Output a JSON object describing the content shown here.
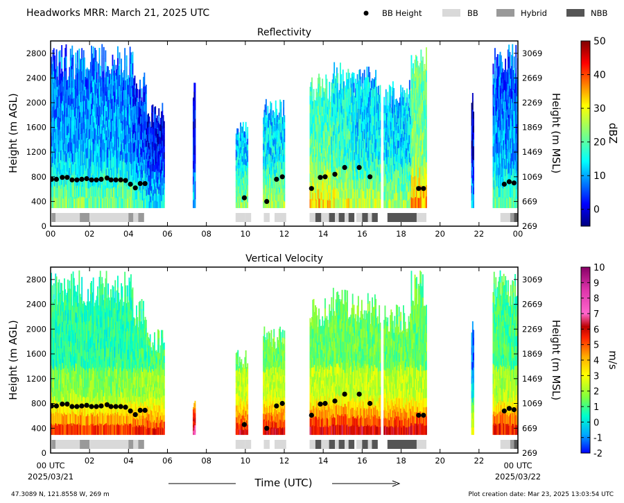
{
  "header": {
    "title": "Headworks MRR:  March 21, 2025 UTC",
    "legend": {
      "bb_height": "BB Height",
      "bb": "BB",
      "hybrid": "Hybrid",
      "nbb": "NBB"
    }
  },
  "colors": {
    "bb": "#d9d9d9",
    "hybrid": "#999999",
    "nbb": "#555555",
    "marker": "#000000"
  },
  "footer": {
    "location": "47.3089 N, 121.8558 W, 269 m",
    "created": "Plot creation date: Mar 23, 2025 13:03:54 UTC",
    "xlabel": "Time (UTC)",
    "start_label": "00 UTC",
    "start_date": "2025/03/21",
    "end_label": "00 UTC",
    "end_date": "2025/03/22"
  },
  "chart_data": [
    {
      "type": "heatmap",
      "title": "Reflectivity",
      "ylabel": "Height (m AGL)",
      "ylabel_right": "Height (m MSL)",
      "xlim": [
        0,
        24
      ],
      "ylim": [
        0,
        3000
      ],
      "x_ticks": [
        "00",
        "02",
        "04",
        "06",
        "08",
        "10",
        "12",
        "14",
        "16",
        "18",
        "20",
        "22",
        "00"
      ],
      "y_ticks": [
        0,
        400,
        800,
        1200,
        1600,
        2000,
        2400,
        2800
      ],
      "y_ticks_right": [
        269,
        669,
        1069,
        1469,
        1869,
        2269,
        2669,
        3069
      ],
      "colorbar": {
        "label": "dBZ",
        "min": -5,
        "max": 50,
        "ticks": [
          0,
          10,
          20,
          30,
          40,
          50
        ],
        "scheme": "jet"
      },
      "echo_segments": [
        {
          "t0": 0.0,
          "t1": 4.2,
          "top": 2950,
          "level": 0.32
        },
        {
          "t0": 4.2,
          "t1": 4.9,
          "top": 2500,
          "level": 0.25
        },
        {
          "t0": 4.9,
          "t1": 5.8,
          "top": 2000,
          "level": 0.18
        },
        {
          "t0": 7.3,
          "t1": 7.4,
          "top": 2400,
          "level": 0.15
        },
        {
          "t0": 9.5,
          "t1": 10.1,
          "top": 1700,
          "level": 0.35
        },
        {
          "t0": 10.9,
          "t1": 12.0,
          "top": 2100,
          "level": 0.38
        },
        {
          "t0": 13.3,
          "t1": 14.4,
          "top": 2500,
          "level": 0.5
        },
        {
          "t0": 14.4,
          "t1": 15.5,
          "top": 2700,
          "level": 0.45
        },
        {
          "t0": 15.5,
          "t1": 16.9,
          "top": 2600,
          "level": 0.4
        },
        {
          "t0": 17.1,
          "t1": 18.5,
          "top": 2400,
          "level": 0.38
        },
        {
          "t0": 18.5,
          "t1": 19.3,
          "top": 2950,
          "level": 0.55
        },
        {
          "t0": 21.6,
          "t1": 21.7,
          "top": 2300,
          "level": 0.15
        },
        {
          "t0": 22.7,
          "t1": 24.0,
          "top": 2950,
          "level": 0.3
        }
      ],
      "bb_height": [
        [
          0.05,
          760
        ],
        [
          0.3,
          760
        ],
        [
          0.6,
          790
        ],
        [
          0.85,
          790
        ],
        [
          1.1,
          750
        ],
        [
          1.35,
          750
        ],
        [
          1.6,
          760
        ],
        [
          1.85,
          770
        ],
        [
          2.1,
          750
        ],
        [
          2.35,
          750
        ],
        [
          2.6,
          760
        ],
        [
          2.9,
          780
        ],
        [
          3.1,
          750
        ],
        [
          3.35,
          750
        ],
        [
          3.6,
          750
        ],
        [
          3.85,
          740
        ],
        [
          4.1,
          680
        ],
        [
          4.35,
          620
        ],
        [
          4.6,
          690
        ],
        [
          4.85,
          690
        ],
        [
          9.95,
          460
        ],
        [
          11.1,
          400
        ],
        [
          11.6,
          760
        ],
        [
          11.9,
          800
        ],
        [
          13.4,
          610
        ],
        [
          13.85,
          790
        ],
        [
          14.1,
          800
        ],
        [
          14.6,
          840
        ],
        [
          15.1,
          950
        ],
        [
          15.85,
          950
        ],
        [
          16.4,
          800
        ],
        [
          18.9,
          610
        ],
        [
          19.15,
          610
        ],
        [
          23.3,
          680
        ],
        [
          23.55,
          720
        ],
        [
          23.8,
          700
        ]
      ],
      "bb_type_strip": [
        {
          "t0": 0.05,
          "t1": 0.25,
          "kind": "hybrid"
        },
        {
          "t0": 0.25,
          "t1": 1.5,
          "kind": "bb"
        },
        {
          "t0": 1.5,
          "t1": 2.0,
          "kind": "hybrid"
        },
        {
          "t0": 2.0,
          "t1": 4.0,
          "kind": "bb"
        },
        {
          "t0": 4.0,
          "t1": 4.25,
          "kind": "hybrid"
        },
        {
          "t0": 4.25,
          "t1": 4.5,
          "kind": "bb"
        },
        {
          "t0": 4.5,
          "t1": 4.8,
          "kind": "hybrid"
        },
        {
          "t0": 9.5,
          "t1": 10.0,
          "kind": "bb"
        },
        {
          "t0": 10.0,
          "t1": 10.3,
          "kind": "bb"
        },
        {
          "t0": 10.95,
          "t1": 11.25,
          "kind": "bb"
        },
        {
          "t0": 11.5,
          "t1": 12.1,
          "kind": "bb"
        },
        {
          "t0": 13.3,
          "t1": 13.6,
          "kind": "bb"
        },
        {
          "t0": 13.6,
          "t1": 13.9,
          "kind": "nbb"
        },
        {
          "t0": 13.9,
          "t1": 14.3,
          "kind": "bb"
        },
        {
          "t0": 14.3,
          "t1": 14.6,
          "kind": "nbb"
        },
        {
          "t0": 14.6,
          "t1": 14.8,
          "kind": "bb"
        },
        {
          "t0": 14.8,
          "t1": 15.1,
          "kind": "nbb"
        },
        {
          "t0": 15.1,
          "t1": 15.3,
          "kind": "bb"
        },
        {
          "t0": 15.3,
          "t1": 15.6,
          "kind": "nbb"
        },
        {
          "t0": 15.7,
          "t1": 16.0,
          "kind": "bb"
        },
        {
          "t0": 16.0,
          "t1": 16.3,
          "kind": "nbb"
        },
        {
          "t0": 16.3,
          "t1": 16.5,
          "kind": "bb"
        },
        {
          "t0": 16.5,
          "t1": 16.8,
          "kind": "nbb"
        },
        {
          "t0": 17.3,
          "t1": 18.8,
          "kind": "nbb"
        },
        {
          "t0": 18.8,
          "t1": 19.3,
          "kind": "bb"
        },
        {
          "t0": 23.1,
          "t1": 23.6,
          "kind": "bb"
        },
        {
          "t0": 23.6,
          "t1": 23.8,
          "kind": "hybrid"
        },
        {
          "t0": 23.8,
          "t1": 24.0,
          "kind": "nbb"
        }
      ]
    },
    {
      "type": "heatmap",
      "title": "Vertical Velocity",
      "ylabel": "Height (m AGL)",
      "ylabel_right": "Height (m MSL)",
      "xlim": [
        0,
        24
      ],
      "ylim": [
        0,
        3000
      ],
      "x_ticks": [
        "",
        "02",
        "04",
        "06",
        "08",
        "10",
        "12",
        "14",
        "16",
        "18",
        "20",
        "22",
        ""
      ],
      "y_ticks": [
        0,
        400,
        800,
        1200,
        1600,
        2000,
        2400,
        2800
      ],
      "y_ticks_right": [
        269,
        669,
        1069,
        1469,
        1869,
        2269,
        2669,
        3069
      ],
      "colorbar": {
        "label": "m/s",
        "min": -2,
        "max": 10,
        "ticks": [
          -2,
          -1,
          0,
          1,
          2,
          3,
          4,
          5,
          6,
          7,
          8,
          9,
          10
        ],
        "scheme": "jet-magenta"
      },
      "echo_segments": [
        {
          "t0": 0.0,
          "t1": 4.2,
          "top": 2950,
          "level": 0.45
        },
        {
          "t0": 4.2,
          "t1": 4.9,
          "top": 2500,
          "level": 0.48
        },
        {
          "t0": 4.9,
          "t1": 5.8,
          "top": 2000,
          "level": 0.5
        },
        {
          "t0": 7.3,
          "t1": 7.4,
          "top": 900,
          "level": 0.7
        },
        {
          "t0": 9.5,
          "t1": 10.1,
          "top": 1700,
          "level": 0.55
        },
        {
          "t0": 10.9,
          "t1": 12.0,
          "top": 2100,
          "level": 0.55
        },
        {
          "t0": 13.3,
          "t1": 14.4,
          "top": 2500,
          "level": 0.55
        },
        {
          "t0": 14.4,
          "t1": 15.5,
          "top": 2700,
          "level": 0.55
        },
        {
          "t0": 15.5,
          "t1": 16.9,
          "top": 2600,
          "level": 0.55
        },
        {
          "t0": 17.1,
          "t1": 18.5,
          "top": 2400,
          "level": 0.55
        },
        {
          "t0": 18.5,
          "t1": 19.3,
          "top": 2950,
          "level": 0.55
        },
        {
          "t0": 21.6,
          "t1": 21.7,
          "top": 2300,
          "level": 0.2
        },
        {
          "t0": 22.7,
          "t1": 24.0,
          "top": 2950,
          "level": 0.5
        }
      ]
    }
  ]
}
